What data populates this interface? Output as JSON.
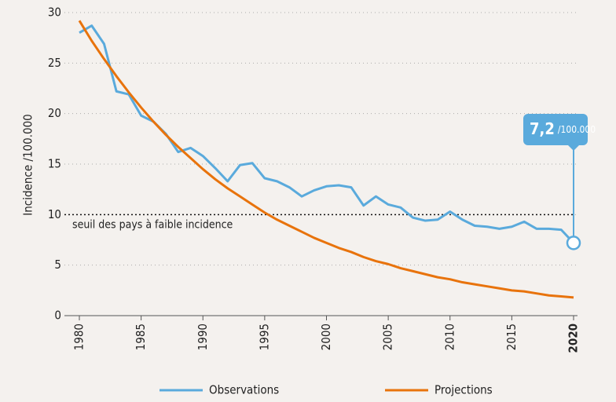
{
  "chart_data": {
    "type": "line",
    "x": [
      1980,
      1981,
      1982,
      1983,
      1984,
      1985,
      1986,
      1987,
      1988,
      1989,
      1990,
      1991,
      1992,
      1993,
      1994,
      1995,
      1996,
      1997,
      1998,
      1999,
      2000,
      2001,
      2002,
      2003,
      2004,
      2005,
      2006,
      2007,
      2008,
      2009,
      2010,
      2011,
      2012,
      2013,
      2014,
      2015,
      2016,
      2017,
      2018,
      2019,
      2020
    ],
    "series": [
      {
        "name": "Observations",
        "color": "#5aaadc",
        "values": [
          28.0,
          28.7,
          26.9,
          22.2,
          21.9,
          19.8,
          19.2,
          18.0,
          16.2,
          16.6,
          15.8,
          14.6,
          13.3,
          14.9,
          15.1,
          13.6,
          13.3,
          12.7,
          11.8,
          12.4,
          12.8,
          12.9,
          12.7,
          10.9,
          11.8,
          11.0,
          10.7,
          9.7,
          9.4,
          9.5,
          10.3,
          9.5,
          8.9,
          8.8,
          8.6,
          8.8,
          9.3,
          8.6,
          8.6,
          8.5,
          7.2
        ],
        "value_labels": [
          null,
          null,
          null,
          null,
          null,
          null,
          null,
          null,
          null,
          null,
          null,
          null,
          null,
          null,
          null,
          null,
          null,
          null,
          null,
          null,
          null,
          null,
          null,
          null,
          null,
          null,
          null,
          null,
          null,
          null,
          null,
          null,
          null,
          null,
          null,
          null,
          null,
          null,
          null,
          null,
          "7,2"
        ]
      },
      {
        "name": "Projections",
        "color": "#e8730c",
        "values": [
          29.2,
          27.2,
          25.4,
          23.7,
          22.1,
          20.6,
          19.2,
          17.9,
          16.7,
          15.6,
          14.5,
          13.5,
          12.6,
          11.8,
          11.0,
          10.2,
          9.5,
          8.9,
          8.3,
          7.7,
          7.2,
          6.7,
          6.3,
          5.8,
          5.4,
          5.1,
          4.7,
          4.4,
          4.1,
          3.8,
          3.6,
          3.3,
          3.1,
          2.9,
          2.7,
          2.5,
          2.4,
          2.2,
          2.0,
          1.9,
          1.8
        ]
      }
    ],
    "annotation_unit": "/100.000",
    "y_label": "Incidence /100.000",
    "threshold": 10,
    "threshold_label": "seuil des pays à faible incidence",
    "xlim": [
      1980,
      2020
    ],
    "xticks": [
      1980,
      1985,
      1990,
      1995,
      2000,
      2005,
      2010,
      2015,
      2020
    ],
    "bold_xtick": 2020,
    "ylim": [
      0,
      30
    ],
    "yticks": [
      0,
      5,
      10,
      15,
      20,
      25,
      30
    ],
    "grid": true,
    "legend": "bottom"
  }
}
